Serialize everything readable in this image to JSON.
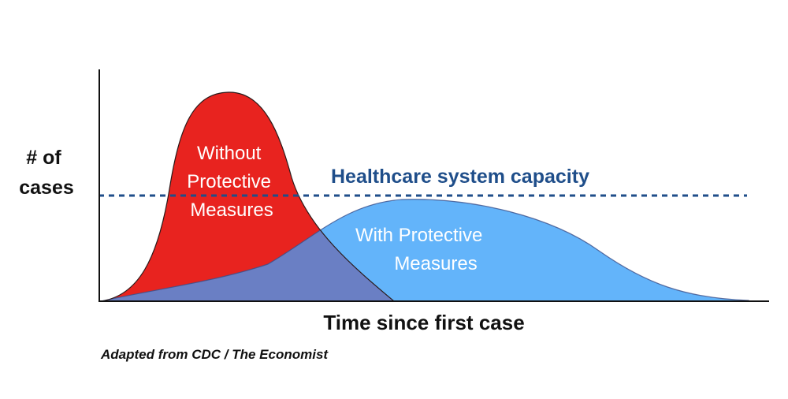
{
  "chart_data": {
    "type": "area",
    "title": "",
    "xlabel": "Time since first case",
    "ylabel_lines": [
      "# of",
      "cases"
    ],
    "source": "Adapted from CDC / The Economist",
    "grid": false,
    "axis_ticks": false,
    "reference_line": {
      "label": "Healthcare system capacity",
      "style": "dashed",
      "color": "#1f4e8a"
    },
    "series": [
      {
        "label_lines": [
          "Without",
          "Protective",
          "Measures"
        ],
        "shape": "tall narrow early peak",
        "color": "#e8231f",
        "relative_peak": 1.0,
        "exceeds_capacity": true
      },
      {
        "label_lines": [
          "With Protective",
          "Measures"
        ],
        "shape": "low wide later peak",
        "color": "#63b4fa",
        "relative_peak": 0.48,
        "exceeds_capacity": false
      }
    ],
    "overlap_color": "#6a7fc4"
  }
}
